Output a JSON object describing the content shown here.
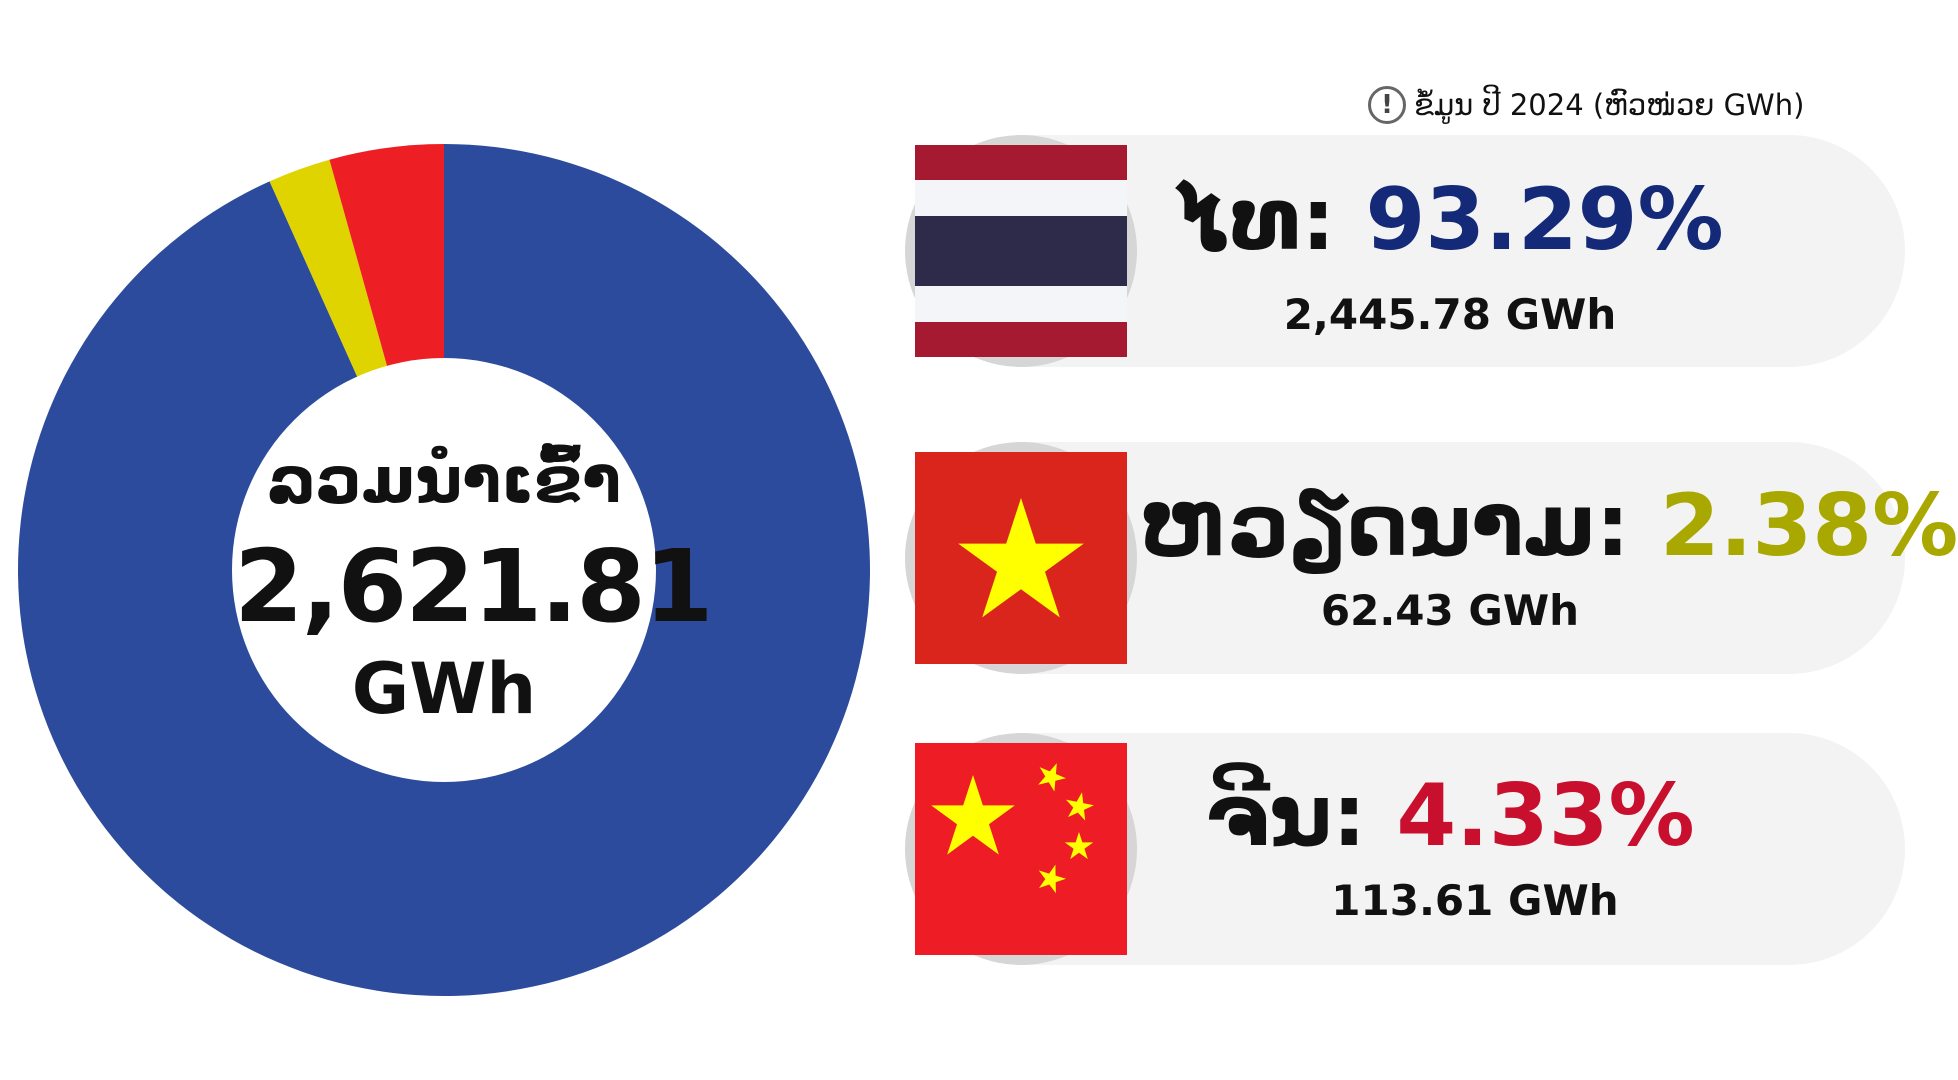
{
  "note": {
    "icon": "info-icon",
    "text": "ຂໍ້ມູນ ປີ 2024 (ຫົວໜ່ວຍ GWh)"
  },
  "center": {
    "label": "ລວມນຳເຂົ້າ",
    "value": "2,621.81",
    "unit": "GWh"
  },
  "countries": [
    {
      "name": "ໄທ:",
      "percent": "93.29%",
      "amount": "2,445.78 GWh",
      "flag": "thailand-flag",
      "color": "#142a78"
    },
    {
      "name": "ຫວຽດນາມ:",
      "percent": "2.38%",
      "amount": "62.43 GWh",
      "flag": "vietnam-flag",
      "color": "#a9a800"
    },
    {
      "name": "ຈີນ:",
      "percent": "4.33%",
      "amount": "113.61 GWh",
      "flag": "china-flag",
      "color": "#c8102e"
    }
  ],
  "chart_data": {
    "type": "pie",
    "categories": [
      "ໄທ",
      "ຫວຽດນາມ",
      "ຈີນ"
    ],
    "values": [
      2445.78,
      62.43,
      113.61
    ],
    "percentages": [
      93.29,
      2.38,
      4.33
    ],
    "colors": [
      "#2c4b9c",
      "#e0d400",
      "#ed1f24"
    ],
    "total": 2621.81,
    "unit": "GWh"
  }
}
